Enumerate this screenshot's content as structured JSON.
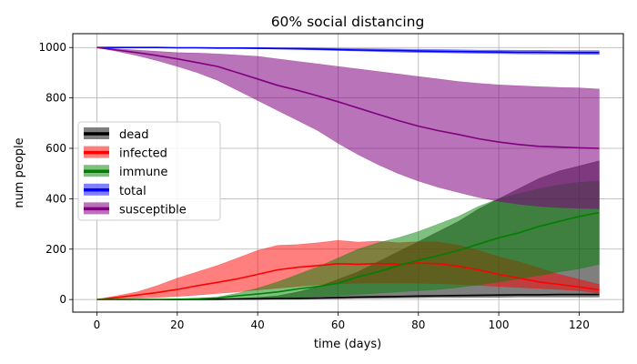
{
  "chart_data": {
    "type": "area",
    "title": "60% social distancing",
    "xlabel": "time (days)",
    "ylabel": "num people",
    "xlim": [
      -6,
      131
    ],
    "ylim": [
      -50,
      1055
    ],
    "xticks": [
      0,
      20,
      40,
      60,
      80,
      100,
      120
    ],
    "yticks": [
      0,
      200,
      400,
      600,
      800,
      1000
    ],
    "grid": true,
    "legend_position": "center-left",
    "x": [
      0,
      5,
      10,
      15,
      20,
      25,
      30,
      35,
      40,
      45,
      50,
      55,
      60,
      65,
      70,
      75,
      80,
      85,
      90,
      95,
      100,
      105,
      110,
      115,
      120,
      125
    ],
    "series": [
      {
        "name": "dead",
        "color": "#000000",
        "fill_opacity": 0.5,
        "values": [
          0,
          0,
          0,
          0,
          0,
          1,
          1,
          2,
          3,
          4,
          5,
          6,
          8,
          10,
          11,
          12,
          14,
          15,
          16,
          17,
          18,
          19,
          19,
          20,
          20,
          20
        ],
        "lower": [
          0,
          0,
          0,
          0,
          0,
          0,
          0,
          0,
          0,
          1,
          1,
          2,
          3,
          4,
          5,
          6,
          7,
          8,
          8,
          9,
          9,
          10,
          10,
          10,
          10,
          10
        ],
        "upper": [
          0,
          0,
          0,
          0,
          1,
          2,
          3,
          5,
          8,
          15,
          30,
          50,
          80,
          110,
          150,
          190,
          230,
          270,
          310,
          360,
          400,
          440,
          480,
          510,
          530,
          550
        ]
      },
      {
        "name": "infected",
        "color": "#ff0000",
        "fill_opacity": 0.5,
        "values": [
          0,
          8,
          18,
          28,
          40,
          55,
          68,
          82,
          100,
          118,
          128,
          135,
          142,
          140,
          143,
          140,
          145,
          142,
          132,
          118,
          100,
          85,
          70,
          60,
          50,
          38
        ],
        "lower": [
          0,
          2,
          5,
          8,
          12,
          18,
          24,
          30,
          38,
          45,
          52,
          58,
          62,
          65,
          66,
          66,
          65,
          63,
          60,
          56,
          52,
          48,
          44,
          40,
          35,
          25
        ],
        "upper": [
          0,
          15,
          30,
          55,
          85,
          110,
          135,
          165,
          195,
          215,
          218,
          225,
          235,
          228,
          232,
          225,
          230,
          228,
          215,
          195,
          170,
          150,
          125,
          100,
          80,
          60
        ]
      },
      {
        "name": "immune",
        "color": "#008000",
        "fill_opacity": 0.5,
        "values": [
          0,
          0,
          0,
          0,
          1,
          3,
          6,
          15,
          22,
          30,
          42,
          52,
          65,
          90,
          110,
          135,
          155,
          175,
          195,
          220,
          245,
          265,
          290,
          310,
          330,
          345
        ],
        "lower": [
          0,
          0,
          0,
          0,
          0,
          0,
          1,
          2,
          3,
          5,
          8,
          12,
          15,
          20,
          25,
          30,
          35,
          40,
          48,
          58,
          70,
          82,
          95,
          110,
          122,
          140
        ],
        "upper": [
          0,
          0,
          0,
          0,
          2,
          5,
          10,
          25,
          45,
          70,
          100,
          130,
          165,
          200,
          225,
          245,
          270,
          300,
          330,
          370,
          400,
          420,
          440,
          455,
          465,
          470
        ]
      },
      {
        "name": "total",
        "color": "#0000ff",
        "fill_opacity": 0.5,
        "values": [
          1000,
          1000,
          1000,
          1000,
          999,
          999,
          998,
          998,
          997,
          996,
          995,
          994,
          992,
          990,
          989,
          988,
          986,
          985,
          984,
          983,
          982,
          981,
          981,
          980,
          980,
          980
        ],
        "lower": [
          1000,
          1000,
          1000,
          999,
          999,
          998,
          997,
          996,
          995,
          994,
          992,
          990,
          988,
          986,
          984,
          982,
          980,
          979,
          978,
          977,
          976,
          975,
          974,
          974,
          973,
          972
        ],
        "upper": [
          1000,
          1000,
          1000,
          1000,
          1000,
          1000,
          1000,
          1000,
          1000,
          999,
          999,
          998,
          997,
          996,
          995,
          994,
          993,
          992,
          991,
          990,
          990,
          989,
          989,
          988,
          988,
          988
        ]
      },
      {
        "name": "susceptible",
        "color": "#800080",
        "fill_opacity": 0.55,
        "values": [
          1000,
          990,
          980,
          968,
          955,
          940,
          925,
          900,
          875,
          850,
          830,
          808,
          785,
          760,
          735,
          710,
          688,
          670,
          655,
          638,
          625,
          615,
          608,
          605,
          602,
          600
        ],
        "lower": [
          1000,
          985,
          968,
          948,
          925,
          900,
          870,
          830,
          790,
          750,
          710,
          670,
          620,
          575,
          535,
          500,
          470,
          445,
          425,
          405,
          390,
          378,
          370,
          365,
          362,
          360
        ],
        "upper": [
          1000,
          995,
          990,
          985,
          980,
          978,
          975,
          970,
          965,
          955,
          945,
          935,
          925,
          915,
          905,
          895,
          885,
          875,
          865,
          858,
          852,
          848,
          845,
          842,
          840,
          835
        ]
      }
    ]
  }
}
